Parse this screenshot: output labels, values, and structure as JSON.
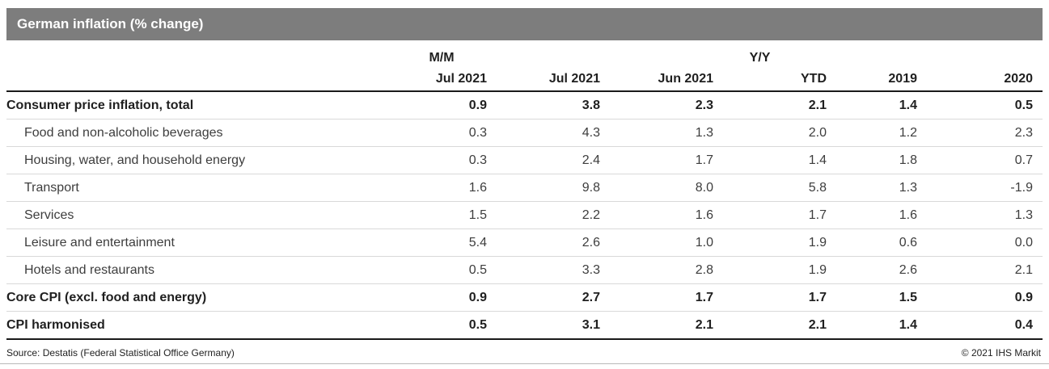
{
  "title_bar": {
    "title": "German inflation (% change)",
    "background_color": "#7d7d7d",
    "text_color": "#ffffff"
  },
  "chart_data": {
    "type": "table",
    "title": "German inflation (% change)",
    "group_headers": [
      {
        "label": "M/M",
        "spans_columns": [
          "Jul 2021"
        ]
      },
      {
        "label": "Y/Y",
        "spans_columns": [
          "Jul 2021",
          "Jun 2021",
          "YTD",
          "2019",
          "2020"
        ]
      }
    ],
    "columns": [
      "",
      "Jul 2021",
      "Jul 2021",
      "Jun 2021",
      "YTD",
      "2019",
      "2020"
    ],
    "rows": [
      {
        "label": "Consumer price inflation, total",
        "bold": true,
        "indented": false,
        "values": [
          "0.9",
          "3.8",
          "2.3",
          "2.1",
          "1.4",
          "0.5"
        ]
      },
      {
        "label": "Food and non-alcoholic beverages",
        "bold": false,
        "indented": true,
        "values": [
          "0.3",
          "4.3",
          "1.3",
          "2.0",
          "1.2",
          "2.3"
        ]
      },
      {
        "label": "Housing, water, and household energy",
        "bold": false,
        "indented": true,
        "values": [
          "0.3",
          "2.4",
          "1.7",
          "1.4",
          "1.8",
          "0.7"
        ]
      },
      {
        "label": "Transport",
        "bold": false,
        "indented": true,
        "values": [
          "1.6",
          "9.8",
          "8.0",
          "5.8",
          "1.3",
          "-1.9"
        ]
      },
      {
        "label": "Services",
        "bold": false,
        "indented": true,
        "values": [
          "1.5",
          "2.2",
          "1.6",
          "1.7",
          "1.6",
          "1.3"
        ]
      },
      {
        "label": "Leisure and entertainment",
        "bold": false,
        "indented": true,
        "values": [
          "5.4",
          "2.6",
          "1.0",
          "1.9",
          "0.6",
          "0.0"
        ]
      },
      {
        "label": "Hotels and restaurants",
        "bold": false,
        "indented": true,
        "values": [
          "0.5",
          "3.3",
          "2.8",
          "1.9",
          "2.6",
          "2.1"
        ]
      },
      {
        "label": "Core CPI (excl. food and energy)",
        "bold": true,
        "indented": false,
        "values": [
          "0.9",
          "2.7",
          "1.7",
          "1.7",
          "1.5",
          "0.9"
        ]
      },
      {
        "label": "CPI harmonised",
        "bold": true,
        "indented": false,
        "values": [
          "0.5",
          "3.1",
          "2.1",
          "2.1",
          "1.4",
          "0.4"
        ]
      }
    ]
  },
  "footer": {
    "source": "Source: Destatis (Federal Statistical Office Germany)",
    "copyright": "© 2021 IHS Markit"
  }
}
